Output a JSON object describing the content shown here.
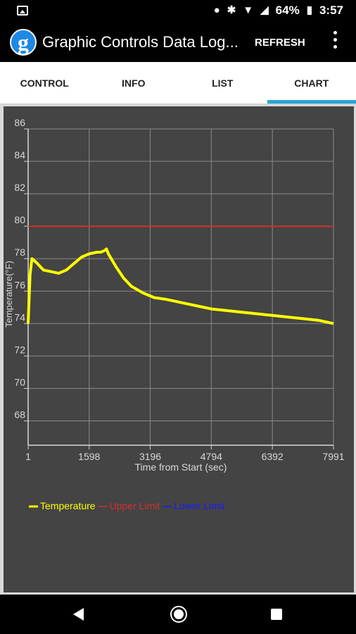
{
  "status_bar": {
    "battery": "64%",
    "time": "3:57",
    "icons": [
      "image-icon",
      "location-icon",
      "bluetooth-icon",
      "wifi-icon",
      "signal-icon",
      "battery-icon"
    ]
  },
  "app_bar": {
    "logo_letter": "g",
    "title": "Graphic Controls Data Log...",
    "refresh_label": "REFRESH"
  },
  "tabs": [
    {
      "label": "CONTROL",
      "active": false
    },
    {
      "label": "INFO",
      "active": false
    },
    {
      "label": "LIST",
      "active": false
    },
    {
      "label": "CHART",
      "active": true
    }
  ],
  "chart_data": {
    "type": "line",
    "xlabel": "Time from Start (sec)",
    "ylabel": "Temperature(°F)",
    "x_ticks": [
      "1",
      "1598",
      "3196",
      "4794",
      "6392",
      "7991"
    ],
    "y_ticks": [
      "68",
      "70",
      "72",
      "74",
      "76",
      "78",
      "80",
      "82",
      "84",
      "86"
    ],
    "xlim": [
      1,
      7991
    ],
    "ylim": [
      66.5,
      86
    ],
    "grid": true,
    "legend_position": "bottom-left",
    "series": [
      {
        "name": "Temperature",
        "color": "#ffff00",
        "x": [
          1,
          50,
          100,
          200,
          400,
          600,
          800,
          1000,
          1200,
          1400,
          1600,
          1800,
          1900,
          2000,
          2050,
          2100,
          2300,
          2500,
          2700,
          3000,
          3300,
          3600,
          4000,
          4400,
          4800,
          5200,
          5600,
          6000,
          6400,
          6800,
          7200,
          7600,
          7991
        ],
        "y": [
          74.0,
          77.0,
          78.0,
          77.8,
          77.3,
          77.2,
          77.1,
          77.3,
          77.7,
          78.1,
          78.3,
          78.4,
          78.4,
          78.5,
          78.6,
          78.3,
          77.5,
          76.8,
          76.3,
          75.9,
          75.6,
          75.5,
          75.3,
          75.1,
          74.9,
          74.8,
          74.7,
          74.6,
          74.5,
          74.4,
          74.3,
          74.2,
          74.0
        ]
      },
      {
        "name": "Upper Limit",
        "color": "#d32f2f",
        "x": [
          1,
          7991
        ],
        "y": [
          80,
          80
        ]
      },
      {
        "name": "Lower Limit",
        "color": "#1a1aff",
        "x": [],
        "y": []
      }
    ]
  },
  "nav_bar": {
    "icons": [
      "back-icon",
      "home-icon",
      "recents-icon"
    ]
  }
}
